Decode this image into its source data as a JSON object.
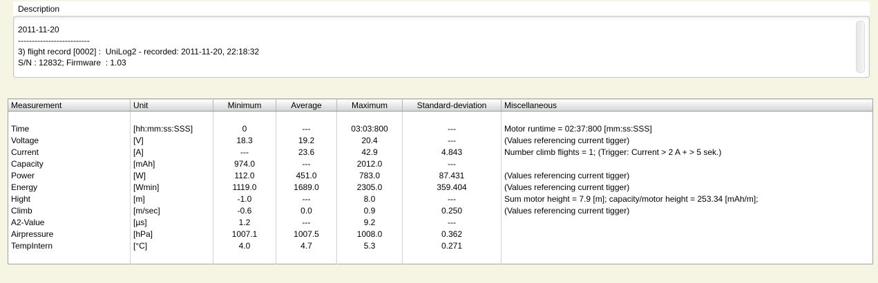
{
  "colors": {
    "page_background": "#f6f5e4",
    "panel_white": "#ffffff",
    "frame_border": "#c6c6c6",
    "table_border": "#a0a0a0",
    "header_gradient_bottom": "#d4d4d4"
  },
  "description_group": {
    "label": "Description",
    "text_lines": [
      "2011-11-20",
      "--------------------------",
      "3) flight record [0002] :  UniLog2 - recorded: 2011-11-20, 22:18:32",
      "S/N : 12832; Firmware  : 1.03"
    ]
  },
  "stats_table": {
    "columns": [
      "Measurement",
      "Unit",
      "Minimum",
      "Average",
      "Maximum",
      "Standard-deviation",
      "Miscellaneous"
    ],
    "rows": [
      [
        "",
        "",
        "",
        "",
        "",
        "",
        ""
      ],
      [
        "Time",
        "[hh:mm:ss:SSS]",
        "0",
        "---",
        "03:03:800",
        "---",
        "Motor runtime = 02:37:800 [mm:ss:SSS]"
      ],
      [
        "Voltage",
        "[V]",
        "18.3",
        "19.2",
        "20.4",
        "---",
        "(Values referencing current tigger)"
      ],
      [
        "Current",
        "[A]",
        "---",
        "23.6",
        "42.9",
        "4.843",
        "Number climb flights = 1; (Trigger: Current > 2 A + > 5 sek.)"
      ],
      [
        "Capacity",
        "[mAh]",
        "974.0",
        "---",
        "2012.0",
        "---",
        ""
      ],
      [
        "Power",
        "[W]",
        "112.0",
        "451.0",
        "783.0",
        "87.431",
        "(Values referencing current tigger)"
      ],
      [
        "Energy",
        "[Wmin]",
        "1119.0",
        "1689.0",
        "2305.0",
        "359.404",
        "(Values referencing current tigger)"
      ],
      [
        "Hight",
        "[m]",
        "-1.0",
        "---",
        "8.0",
        "---",
        "Sum motor height = 7.9 [m]; capacity/motor height = 253.34 [mAh/m];"
      ],
      [
        "Climb",
        "[m/sec]",
        "-0.6",
        "0.0",
        "0.9",
        "0.250",
        "(Values referencing current tigger)"
      ],
      [
        "A2-Value",
        "[µs]",
        "1.2",
        "---",
        "9.2",
        "---",
        ""
      ],
      [
        "Airpressure",
        "[hPa]",
        "1007.1",
        "1007.5",
        "1008.0",
        "0.362",
        ""
      ],
      [
        "TempIntern",
        "[°C]",
        "4.0",
        "4.7",
        "5.3",
        "0.271",
        ""
      ],
      [
        "",
        "",
        "",
        "",
        "",
        "",
        ""
      ]
    ]
  }
}
